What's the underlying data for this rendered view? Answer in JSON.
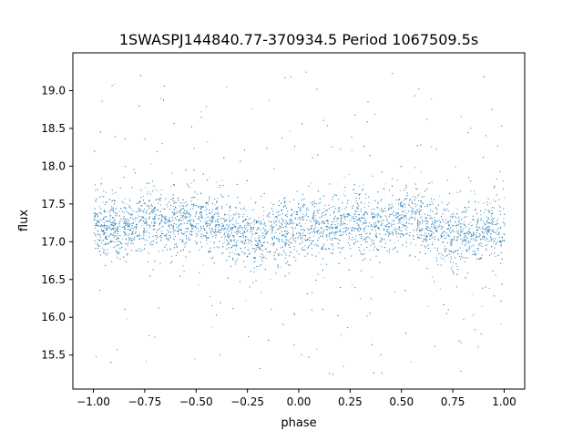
{
  "chart_data": {
    "type": "scatter",
    "title": "1SWASPJ144840.77-370934.5 Period 1067509.5s",
    "xlabel": "phase",
    "ylabel": "flux",
    "xlim": [
      -1.1,
      1.1
    ],
    "ylim": [
      15.05,
      19.5
    ],
    "xticks": [
      -1.0,
      -0.75,
      -0.5,
      -0.25,
      0.0,
      0.25,
      0.5,
      0.75,
      1.0
    ],
    "xtick_labels": [
      "−1.00",
      "−0.75",
      "−0.50",
      "−0.25",
      "0.00",
      "0.25",
      "0.50",
      "0.75",
      "1.00"
    ],
    "yticks": [
      15.5,
      16.0,
      16.5,
      17.0,
      17.5,
      18.0,
      18.5,
      19.0
    ],
    "ytick_labels": [
      "15.5",
      "16.0",
      "16.5",
      "17.0",
      "17.5",
      "18.0",
      "18.5",
      "19.0"
    ],
    "grid": false,
    "marker_color": "#1f77b4",
    "series": [
      {
        "phase_range": [
          -1.0,
          1.0
        ],
        "core_flux_range": [
          16.7,
          17.6
        ],
        "outlier_flux_range": [
          15.2,
          19.3
        ],
        "median_flux_profile": {
          "phase": [
            -1.0,
            -0.9,
            -0.8,
            -0.7,
            -0.6,
            -0.5,
            -0.4,
            -0.3,
            -0.2,
            -0.1,
            0.0,
            0.1,
            0.2,
            0.3,
            0.4,
            0.5,
            0.6,
            0.7,
            0.8,
            0.9,
            1.0
          ],
          "flux": [
            17.2,
            17.2,
            17.25,
            17.3,
            17.25,
            17.3,
            17.25,
            17.1,
            17.05,
            17.15,
            17.2,
            17.2,
            17.25,
            17.3,
            17.25,
            17.3,
            17.25,
            17.1,
            17.05,
            17.15,
            17.2
          ]
        }
      }
    ]
  }
}
